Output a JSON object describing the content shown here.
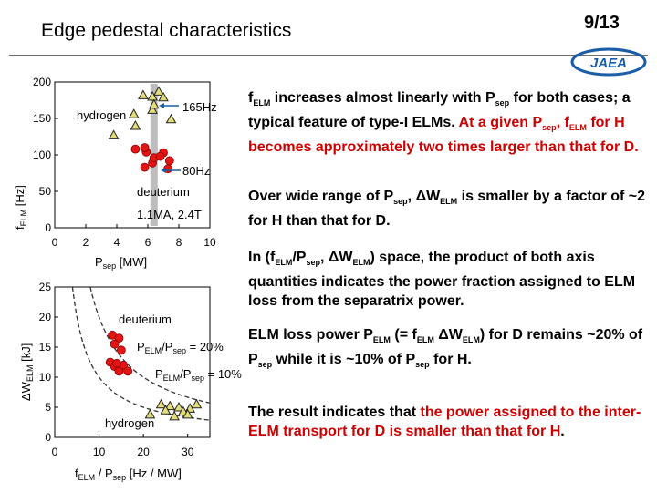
{
  "slide": {
    "title": "Edge pedestal characteristics",
    "page": "9/13",
    "logo_text": "JAEA"
  },
  "colors": {
    "accent_red": "#cc0000",
    "point_red": "#e31414",
    "point_yellow": "#e3dc7a",
    "band_gray": "#bdbdbd"
  },
  "chart_data": [
    {
      "type": "scatter",
      "title": "",
      "xlabel": "Psep [MW]",
      "ylabel": "fELM [Hz]",
      "xlim": [
        0,
        10
      ],
      "ylim": [
        0,
        200
      ],
      "x_ticks": [
        "0",
        "2",
        "4",
        "6",
        "8",
        "10"
      ],
      "y_ticks": [
        "0",
        "50",
        "100",
        "150",
        "200"
      ],
      "series": [
        {
          "name": "hydrogen",
          "marker": "triangle",
          "points": [
            [
              5.7,
              182
            ],
            [
              6.3,
              180
            ],
            [
              6.7,
              187
            ],
            [
              7.0,
              179
            ],
            [
              5.1,
              156
            ],
            [
              6.3,
              162
            ],
            [
              7.5,
              149
            ],
            [
              3.8,
              127
            ],
            [
              5.2,
              140
            ],
            [
              6.4,
              169
            ]
          ]
        },
        {
          "name": "deuterium",
          "marker": "circle",
          "points": [
            [
              5.2,
              108
            ],
            [
              5.9,
              104
            ],
            [
              6.3,
              89
            ],
            [
              5.8,
              83
            ],
            [
              7.0,
              103
            ],
            [
              7.4,
              92
            ],
            [
              5.8,
              110
            ],
            [
              6.4,
              96
            ],
            [
              7.3,
              81
            ],
            [
              6.8,
              98
            ]
          ]
        }
      ],
      "annotations": {
        "hydrogen": "hydrogen",
        "h_freq": "165Hz",
        "d_freq": "80Hz",
        "deuterium": "deuterium",
        "conditions": "1.1MA, 2.4T"
      }
    },
    {
      "type": "scatter",
      "title": "",
      "xlabel": "fELM / Psep [Hz / MW]",
      "ylabel": "ΔWELM [kJ]",
      "xlim": [
        0,
        35
      ],
      "ylim": [
        0,
        25
      ],
      "x_ticks": [
        "0",
        "10",
        "20",
        "30"
      ],
      "y_ticks": [
        "0",
        "5",
        "10",
        "15",
        "20",
        "25"
      ],
      "series": [
        {
          "name": "deuterium",
          "marker": "circle",
          "points": [
            [
              13,
              17
            ],
            [
              14.5,
              16.5
            ],
            [
              13.5,
              15.5
            ],
            [
              15,
              14.5
            ],
            [
              12.5,
              12.5
            ],
            [
              13.5,
              11.8
            ],
            [
              14.5,
              11
            ],
            [
              15.5,
              12
            ],
            [
              16.5,
              11
            ],
            [
              14,
              12.3
            ]
          ]
        },
        {
          "name": "hydrogen",
          "marker": "triangle",
          "points": [
            [
              24,
              5.5
            ],
            [
              26,
              5.2
            ],
            [
              28,
              5
            ],
            [
              30.5,
              4.8
            ],
            [
              25,
              4.5
            ],
            [
              29,
              4.3
            ],
            [
              32,
              5.5
            ],
            [
              21.5,
              3.8
            ],
            [
              27,
              3.5
            ],
            [
              30,
              3.8
            ]
          ]
        }
      ],
      "curves": [
        {
          "name": "PELM/Psep = 20%",
          "fraction": 0.2
        },
        {
          "name": "PELM/Psep = 10%",
          "fraction": 0.1
        }
      ],
      "annotations": {
        "deuterium": "deuterium",
        "hydrogen": "hydrogen",
        "p20": "PELM/Psep = 20%",
        "p10": "PELM/Psep = 10%"
      }
    }
  ],
  "text": {
    "p1": "fELM increases almost linearly with Psep for both cases; a typical feature of type-I ELMs. At a given Psep, fELM for H becomes approximately two times larger than that for D.",
    "p2": "Over wide range of Psep, ΔWELM is smaller by a factor of ~2 for H than that for D.",
    "p3": "In (fELM/Psep, ΔWELM) space, the product of both axis quantities indicates the power fraction assigned to ELM loss from the separatrix power.",
    "p4": "ELM loss power PELM (= fELM ΔWELM) for D remains ~20% of Psep while it is ~10% of Psep for H.",
    "p5": "The result indicates that the power assigned to the inter-ELM transport for D is smaller than that for H."
  }
}
